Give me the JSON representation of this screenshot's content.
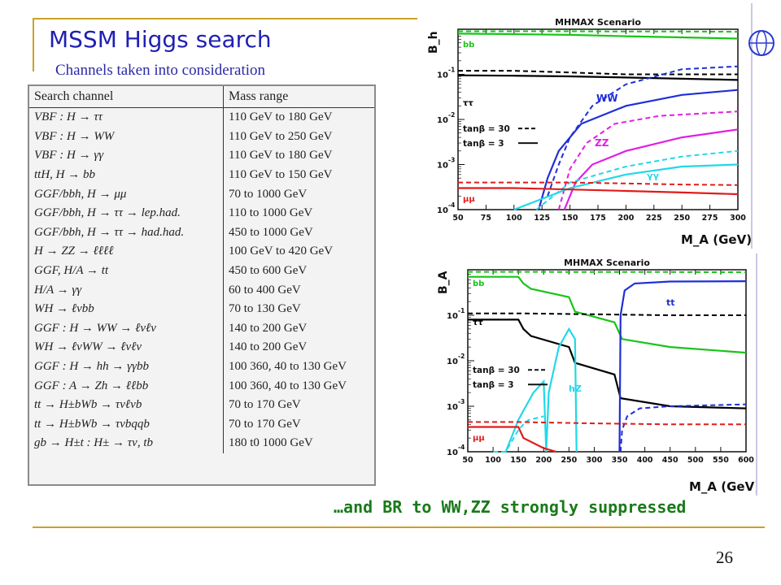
{
  "slide": {
    "title": "MSSM Higgs search",
    "subtitle": "Channels taken into consideration",
    "caption": "…and BR to WW,ZZ strongly suppressed",
    "page_number": "26"
  },
  "table": {
    "headers": [
      "Search channel",
      "Mass range"
    ],
    "rows": [
      [
        "VBF : H → ττ",
        "110 GeV to 180 GeV"
      ],
      [
        "VBF : H → WW",
        "110 GeV to 250 GeV"
      ],
      [
        "VBF : H → γγ",
        "110 GeV to 180 GeV"
      ],
      [
        "ttH, H → bb",
        "110 GeV to 150 GeV"
      ],
      [
        "GGF/bbh, H → μμ",
        "70 to 1000 GeV"
      ],
      [
        "GGF/bbh, H → ττ → lep.had.",
        "110 to 1000 GeV"
      ],
      [
        "GGF/bbh, H → ττ → had.had.",
        "450 to 1000 GeV"
      ],
      [
        "H → ZZ → ℓℓℓℓ",
        "100 GeV to 420 GeV"
      ],
      [
        "GGF, H/A → tt",
        "450 to 600 GeV"
      ],
      [
        "H/A → γγ",
        "60 to 400 GeV"
      ],
      [
        "WH → ℓνbb",
        "70 to 130 GeV"
      ],
      [
        "GGF : H → WW → ℓνℓν",
        "140 to 200 GeV"
      ],
      [
        "WH → ℓνWW → ℓνℓν",
        "140 to 200 GeV"
      ],
      [
        "GGF : H → hh → γγbb",
        "100 360, 40 to 130 GeV"
      ],
      [
        "GGF : A → Zh → ℓℓbb",
        "100 360, 40 to 130 GeV"
      ],
      [
        "tt → H±bWb → τνℓνb",
        "70 to 170 GeV"
      ],
      [
        "tt → H±bWb → τνbqqb",
        "70 to 170 GeV"
      ],
      [
        "gb → H±t : H± → τν, tb",
        "180 t0 1000 GeV"
      ]
    ]
  },
  "colors": {
    "title": "#1f1fb5",
    "caption": "#1a7a1a",
    "accent_line": "#c9a227",
    "bb": "#19c419",
    "tautau": "#000000",
    "WW": "#1f2fd8",
    "ZZ": "#e21ee2",
    "gammagamma": "#21d8e8",
    "mumu": "#e11b1b",
    "tt": "#1f2fd8",
    "hZ": "#21d8e8"
  },
  "chart_data": [
    {
      "type": "line",
      "title": "MHMAX Scenario",
      "xlabel": "M_A (GeV)",
      "ylabel": "B_h",
      "log_y": true,
      "xlim": [
        50,
        300
      ],
      "ylim": [
        0.0001,
        1
      ],
      "x_ticks": [
        "50",
        "75",
        "100",
        "125",
        "150",
        "175",
        "200",
        "225",
        "250",
        "275",
        "300"
      ],
      "y_ticks": [
        "10",
        "10",
        "10",
        "10"
      ],
      "y_tick_exponents": [
        "-1",
        "-2",
        "-3",
        "-4"
      ],
      "legend": {
        "placement": "middle-left",
        "entries": [
          {
            "label": "tanβ = 30",
            "style": "dashed"
          },
          {
            "label": "tanβ = 3",
            "style": "solid"
          }
        ]
      },
      "annotations": [
        "bb",
        "ττ",
        "WW",
        "ZZ",
        "γγ",
        "μμ"
      ],
      "series": [
        {
          "name": "bb",
          "tanb": "3",
          "color_key": "bb",
          "style": "solid",
          "x": [
            50,
            100,
            150,
            200,
            250,
            300
          ],
          "y": [
            0.8,
            0.78,
            0.75,
            0.7,
            0.66,
            0.62
          ]
        },
        {
          "name": "bb",
          "tanb": "30",
          "color_key": "bb",
          "style": "dashed",
          "x": [
            50,
            100,
            150,
            200,
            250,
            300
          ],
          "y": [
            0.9,
            0.9,
            0.9,
            0.89,
            0.89,
            0.88
          ]
        },
        {
          "name": "ττ",
          "tanb": "3",
          "color_key": "tautau",
          "style": "solid",
          "x": [
            50,
            100,
            150,
            200,
            250,
            300
          ],
          "y": [
            0.095,
            0.093,
            0.09,
            0.085,
            0.08,
            0.075
          ]
        },
        {
          "name": "ττ",
          "tanb": "30",
          "color_key": "tautau",
          "style": "dashed",
          "x": [
            50,
            100,
            150,
            200,
            250,
            300
          ],
          "y": [
            0.12,
            0.12,
            0.11,
            0.1,
            0.1,
            0.1
          ]
        },
        {
          "name": "WW",
          "tanb": "3",
          "color_key": "WW",
          "style": "solid",
          "x": [
            122,
            130,
            140,
            160,
            200,
            250,
            300
          ],
          "y": [
            0.0001,
            0.0005,
            0.002,
            0.008,
            0.02,
            0.035,
            0.045
          ]
        },
        {
          "name": "WW",
          "tanb": "30",
          "color_key": "WW",
          "style": "dashed",
          "x": [
            130,
            140,
            150,
            170,
            200,
            250,
            300
          ],
          "y": [
            0.0002,
            0.001,
            0.004,
            0.02,
            0.06,
            0.13,
            0.15
          ]
        },
        {
          "name": "ZZ",
          "tanb": "3",
          "color_key": "ZZ",
          "style": "solid",
          "x": [
            145,
            155,
            170,
            200,
            250,
            300
          ],
          "y": [
            0.0001,
            0.0004,
            0.001,
            0.002,
            0.004,
            0.006
          ]
        },
        {
          "name": "ZZ",
          "tanb": "30",
          "color_key": "ZZ",
          "style": "dashed",
          "x": [
            140,
            150,
            165,
            190,
            230,
            300
          ],
          "y": [
            0.0001,
            0.0008,
            0.003,
            0.008,
            0.012,
            0.015
          ]
        },
        {
          "name": "γγ",
          "tanb": "3",
          "color_key": "gammagamma",
          "style": "solid",
          "x": [
            100,
            150,
            200,
            250,
            300
          ],
          "y": [
            0.0001,
            0.0003,
            0.0006,
            0.0009,
            0.001
          ]
        },
        {
          "name": "γγ",
          "tanb": "30",
          "color_key": "gammagamma",
          "style": "dashed",
          "x": [
            120,
            150,
            200,
            250,
            300
          ],
          "y": [
            0.0001,
            0.0004,
            0.0009,
            0.0015,
            0.002
          ]
        },
        {
          "name": "μμ",
          "tanb": "3",
          "color_key": "mumu",
          "style": "solid",
          "x": [
            50,
            100,
            150,
            200,
            250,
            300
          ],
          "y": [
            0.0003,
            0.0003,
            0.00028,
            0.00026,
            0.00024,
            0.00022
          ]
        },
        {
          "name": "μμ",
          "tanb": "30",
          "color_key": "mumu",
          "style": "dashed",
          "x": [
            50,
            100,
            150,
            200,
            250,
            300
          ],
          "y": [
            0.0004,
            0.0004,
            0.0004,
            0.00038,
            0.00036,
            0.00035
          ]
        }
      ]
    },
    {
      "type": "line",
      "title": "MHMAX Scenario",
      "xlabel": "M_A (GeV)",
      "ylabel": "B_A",
      "log_y": true,
      "xlim": [
        50,
        600
      ],
      "ylim": [
        0.0001,
        1
      ],
      "x_ticks": [
        "50",
        "100",
        "150",
        "200",
        "250",
        "300",
        "350",
        "400",
        "450",
        "500",
        "550",
        "600"
      ],
      "y_ticks": [
        "10",
        "10",
        "10",
        "10"
      ],
      "y_tick_exponents": [
        "-1",
        "-2",
        "-3",
        "-4"
      ],
      "legend": {
        "placement": "middle-left",
        "entries": [
          {
            "label": "tanβ = 30",
            "style": "dashed"
          },
          {
            "label": "tanβ = 3",
            "style": "solid"
          }
        ]
      },
      "annotations": [
        "bb",
        "ττ",
        "μμ",
        "hZ",
        "tt"
      ],
      "series": [
        {
          "name": "bb",
          "tanb": "30",
          "color_key": "bb",
          "style": "dashed",
          "x": [
            50,
            150,
            300,
            450,
            600
          ],
          "y": [
            0.9,
            0.9,
            0.89,
            0.89,
            0.88
          ]
        },
        {
          "name": "bb",
          "tanb": "3",
          "color_key": "bb",
          "style": "solid",
          "x": [
            50,
            150,
            160,
            175,
            250,
            262,
            340,
            355,
            450,
            600
          ],
          "y": [
            0.7,
            0.7,
            0.5,
            0.38,
            0.25,
            0.12,
            0.07,
            0.03,
            0.02,
            0.015
          ]
        },
        {
          "name": "ττ",
          "tanb": "30",
          "color_key": "tautau",
          "style": "dashed",
          "x": [
            50,
            150,
            300,
            450,
            600
          ],
          "y": [
            0.11,
            0.11,
            0.105,
            0.1,
            0.1
          ]
        },
        {
          "name": "ττ",
          "tanb": "3",
          "color_key": "tautau",
          "style": "solid",
          "x": [
            50,
            150,
            160,
            175,
            250,
            262,
            340,
            352,
            450,
            600
          ],
          "y": [
            0.08,
            0.08,
            0.05,
            0.035,
            0.02,
            0.009,
            0.005,
            0.0015,
            0.001,
            0.0009
          ]
        },
        {
          "name": "tt",
          "tanb": "3",
          "color_key": "tt",
          "style": "solid",
          "x": [
            350,
            352,
            360,
            380,
            450,
            600
          ],
          "y": [
            0.0001,
            0.1,
            0.35,
            0.5,
            0.55,
            0.56
          ]
        },
        {
          "name": "tt",
          "tanb": "30",
          "color_key": "tt",
          "style": "dashed",
          "x": [
            352,
            355,
            365,
            390,
            450,
            600
          ],
          "y": [
            0.0001,
            0.0003,
            0.0006,
            0.0009,
            0.001,
            0.0011
          ]
        },
        {
          "name": "hZ",
          "tanb": "3",
          "color_key": "hZ",
          "style": "solid",
          "x": [
            125,
            150,
            160,
            180,
            200,
            205,
            210,
            230,
            250,
            262,
            265
          ],
          "y": [
            0.0001,
            0.0005,
            0.0008,
            0.002,
            0.0035,
            0.0001,
            0.002,
            0.02,
            0.05,
            0.03,
            0.0001
          ]
        },
        {
          "name": "hZ",
          "tanb": "30",
          "color_key": "hZ",
          "style": "dashed",
          "x": [
            100,
            125,
            150,
            160,
            170,
            200
          ],
          "y": [
            0.0001,
            0.0001,
            0.0003,
            0.0004,
            0.0005,
            0.0006
          ]
        },
        {
          "name": "μμ",
          "tanb": "30",
          "color_key": "mumu",
          "style": "dashed",
          "x": [
            50,
            150,
            300,
            450,
            600
          ],
          "y": [
            0.00045,
            0.00045,
            0.00042,
            0.0004,
            0.0004
          ]
        },
        {
          "name": "μμ",
          "tanb": "3",
          "color_key": "mumu",
          "style": "solid",
          "x": [
            50,
            150,
            160,
            200,
            225
          ],
          "y": [
            0.00035,
            0.00035,
            0.0002,
            0.00012,
            0.0001
          ]
        }
      ]
    }
  ]
}
